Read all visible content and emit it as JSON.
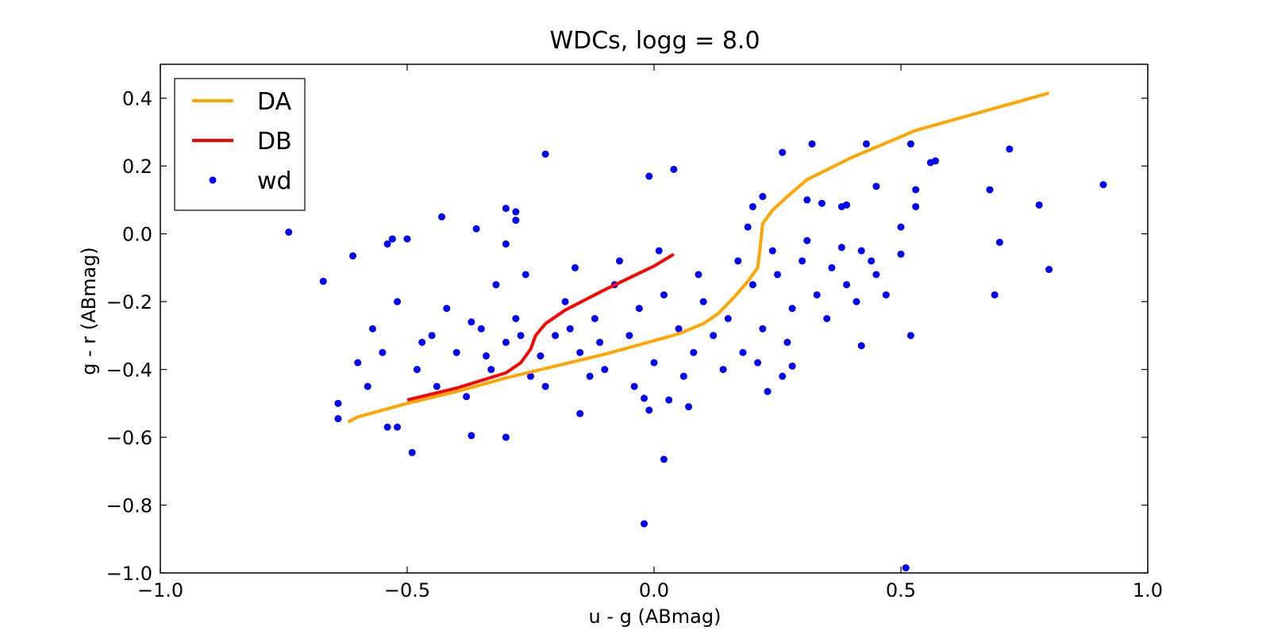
{
  "chart_data": {
    "type": "scatter",
    "title": "WDCs, logg = 8.0",
    "x_label": "u - g (ABmag)",
    "y_label": "g - r (ABmag)",
    "xlim": [
      -1.0,
      1.0
    ],
    "ylim": [
      -1.0,
      0.5
    ],
    "xticks": [
      {
        "value": -1.0,
        "label": "−1.0"
      },
      {
        "value": -0.5,
        "label": "−0.5"
      },
      {
        "value": 0,
        "label": "0.0"
      },
      {
        "value": 0.5,
        "label": "0.5"
      },
      {
        "value": 1.0,
        "label": "1.0"
      }
    ],
    "yticks": [
      {
        "value": -1.0,
        "label": "−1.0"
      },
      {
        "value": -0.8,
        "label": "−0.8"
      },
      {
        "value": -0.6,
        "label": "−0.6"
      },
      {
        "value": -0.4,
        "label": "−0.4"
      },
      {
        "value": -0.2,
        "label": "−0.2"
      },
      {
        "value": 0,
        "label": "0.0"
      },
      0.2,
      0.4
    ],
    "legend": "upper left",
    "grid": false,
    "series": [
      {
        "name": "DA",
        "mode": "line",
        "color": "#ffa500",
        "x": [
          -0.62,
          -0.6,
          -0.5,
          -0.4,
          -0.3,
          -0.2,
          -0.1,
          0,
          0.05,
          0.1,
          0.13,
          0.16,
          0.19,
          0.21,
          0.215,
          0.22,
          0.24,
          0.27,
          0.31,
          0.4,
          0.53,
          0.8
        ],
        "y": [
          -0.555,
          -0.54,
          -0.5,
          -0.465,
          -0.425,
          -0.39,
          -0.355,
          -0.315,
          -0.295,
          -0.265,
          -0.235,
          -0.19,
          -0.14,
          -0.1,
          -0.04,
          0.03,
          0.07,
          0.11,
          0.16,
          0.225,
          0.305,
          0.415
        ]
      },
      {
        "name": "DB",
        "mode": "line",
        "color": "#ff0000",
        "x": [
          -0.5,
          -0.4,
          -0.3,
          -0.27,
          -0.25,
          -0.24,
          -0.22,
          -0.18,
          -0.14,
          -0.1,
          -0.05,
          0,
          0.04
        ],
        "y": [
          -0.49,
          -0.455,
          -0.41,
          -0.38,
          -0.34,
          -0.3,
          -0.265,
          -0.225,
          -0.195,
          -0.165,
          -0.13,
          -0.095,
          -0.06
        ]
      },
      {
        "name": "wd",
        "mode": "markers",
        "color": "#0000ff",
        "x": [
          -0.74,
          -0.67,
          -0.61,
          -0.22,
          -0.01,
          0.04,
          0.52,
          0.51,
          -0.02,
          0.02,
          -0.49,
          0.91,
          0.8,
          0.72,
          0.69,
          0.68,
          0.7,
          0.78,
          0.57,
          0.56,
          0.32,
          0.26,
          0.43,
          0.45,
          0.53,
          0.53,
          0.52,
          0.5,
          0.5,
          0.42,
          -0.64,
          -0.64,
          -0.54,
          -0.52,
          -0.3,
          -0.37,
          -0.3,
          -0.28,
          -0.28,
          -0.43,
          -0.36,
          -0.3,
          -0.5,
          -0.54,
          -0.53,
          0.22,
          0.2,
          0.19,
          0.31,
          0.34,
          0.38,
          0.39,
          0.07,
          0.03,
          -0.02,
          -0.01,
          0.23,
          0.26,
          0.28,
          -0.15,
          -0.45,
          -0.4,
          -0.35,
          -0.33,
          -0.3,
          -0.28,
          -0.25,
          -0.2,
          -0.18,
          -0.15,
          -0.12,
          -0.1,
          -0.08,
          -0.05,
          -0.03,
          0.0,
          0.02,
          0.05,
          0.08,
          0.1,
          0.12,
          0.15,
          0.18,
          0.2,
          0.22,
          0.25,
          0.28,
          0.3,
          0.33,
          0.36,
          0.39,
          0.42,
          0.45,
          -0.55,
          -0.58,
          -0.52,
          -0.48,
          -0.42,
          -0.38,
          -0.32,
          -0.26,
          -0.22,
          -0.16,
          -0.13,
          -0.07,
          -0.04,
          0.01,
          0.06,
          0.09,
          0.14,
          0.17,
          0.21,
          0.24,
          0.27,
          0.31,
          0.35,
          0.38,
          0.41,
          0.44,
          0.47,
          -0.6,
          -0.57,
          -0.47,
          -0.44,
          -0.37,
          -0.34,
          -0.27,
          -0.23,
          -0.17,
          -0.11
        ],
        "y": [
          0.005,
          -0.14,
          -0.065,
          0.235,
          0.17,
          0.19,
          0.265,
          -0.985,
          -0.855,
          -0.665,
          -0.645,
          0.145,
          -0.105,
          0.25,
          -0.18,
          0.13,
          -0.025,
          0.085,
          0.215,
          0.21,
          0.265,
          0.24,
          0.265,
          0.14,
          0.08,
          0.13,
          -0.3,
          0.02,
          -0.06,
          -0.33,
          -0.5,
          -0.545,
          -0.57,
          -0.57,
          -0.6,
          -0.595,
          0.075,
          0.065,
          0.04,
          0.05,
          0.015,
          -0.03,
          -0.015,
          -0.03,
          -0.015,
          0.11,
          0.08,
          0.02,
          0.1,
          0.09,
          0.08,
          0.085,
          -0.51,
          -0.49,
          -0.485,
          -0.52,
          -0.465,
          -0.42,
          -0.39,
          -0.53,
          -0.3,
          -0.35,
          -0.28,
          -0.4,
          -0.32,
          -0.25,
          -0.42,
          -0.3,
          -0.2,
          -0.35,
          -0.25,
          -0.4,
          -0.15,
          -0.3,
          -0.22,
          -0.38,
          -0.18,
          -0.28,
          -0.35,
          -0.2,
          -0.3,
          -0.25,
          -0.35,
          -0.15,
          -0.28,
          -0.12,
          -0.22,
          -0.08,
          -0.18,
          -0.1,
          -0.15,
          -0.05,
          -0.12,
          -0.35,
          -0.45,
          -0.2,
          -0.4,
          -0.22,
          -0.48,
          -0.15,
          -0.12,
          -0.45,
          -0.1,
          -0.42,
          -0.08,
          -0.45,
          -0.05,
          -0.42,
          -0.12,
          -0.4,
          -0.08,
          -0.38,
          -0.05,
          -0.32,
          -0.02,
          -0.25,
          -0.04,
          -0.2,
          -0.08,
          -0.18,
          -0.38,
          -0.28,
          -0.32,
          -0.45,
          -0.26,
          -0.36,
          -0.3,
          -0.36,
          -0.28,
          -0.32
        ]
      }
    ]
  }
}
